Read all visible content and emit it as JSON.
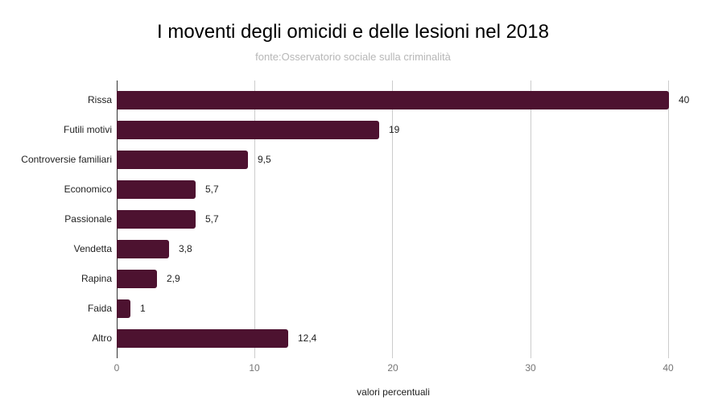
{
  "chart_data": {
    "type": "bar",
    "orientation": "horizontal",
    "title": "I moventi degli omicidi e delle lesioni nel 2018",
    "subtitle": "fonte:Osservatorio sociale sulla criminalità",
    "xlabel": "valori percentuali",
    "ylabel": "",
    "xlim": [
      0,
      40
    ],
    "x_ticks": [
      "0",
      "10",
      "20",
      "30",
      "40"
    ],
    "grid": true,
    "legend": null,
    "bar_color": "#4d1230",
    "categories": [
      "Rissa",
      "Futili motivi",
      "Controversie familiari",
      "Economico",
      "Passionale",
      "Vendetta",
      "Rapina",
      "Faida",
      "Altro"
    ],
    "values": [
      40,
      19,
      9.5,
      5.7,
      5.7,
      3.8,
      2.9,
      1,
      12.4
    ],
    "value_labels": [
      "40",
      "19",
      "9,5",
      "5,7",
      "5,7",
      "3,8",
      "2,9",
      "1",
      "12,4"
    ]
  }
}
